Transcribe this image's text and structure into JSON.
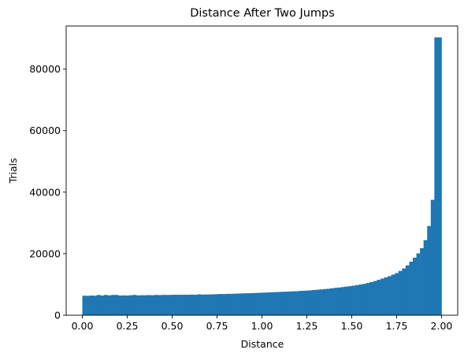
{
  "chart_data": {
    "type": "bar",
    "title": "Distance After Two Jumps",
    "xlabel": "Distance",
    "ylabel": "Trials",
    "xlim": [
      -0.09,
      2.09
    ],
    "ylim": [
      0,
      94000
    ],
    "bin_width": 0.02,
    "bar_color": "#1f77b4",
    "grid": false,
    "x_ticks": [
      {
        "value": 0.0,
        "label": "0.00"
      },
      {
        "value": 0.25,
        "label": "0.25"
      },
      {
        "value": 0.5,
        "label": "0.50"
      },
      {
        "value": 0.75,
        "label": "0.75"
      },
      {
        "value": 1.0,
        "label": "1.00"
      },
      {
        "value": 1.25,
        "label": "1.25"
      },
      {
        "value": 1.5,
        "label": "1.50"
      },
      {
        "value": 1.75,
        "label": "1.75"
      },
      {
        "value": 2.0,
        "label": "2.00"
      }
    ],
    "y_ticks": [
      {
        "value": 0,
        "label": "0"
      },
      {
        "value": 20000,
        "label": "20000"
      },
      {
        "value": 40000,
        "label": "40000"
      },
      {
        "value": 60000,
        "label": "60000"
      },
      {
        "value": 80000,
        "label": "80000"
      }
    ],
    "bin_starts": [
      0.0,
      0.02,
      0.04,
      0.06,
      0.08,
      0.1,
      0.12,
      0.14,
      0.16,
      0.18,
      0.2,
      0.22,
      0.24,
      0.26,
      0.28,
      0.3,
      0.32,
      0.34,
      0.36,
      0.38,
      0.4,
      0.42,
      0.44,
      0.46,
      0.48,
      0.5,
      0.52,
      0.54,
      0.56,
      0.58,
      0.6,
      0.62,
      0.64,
      0.66,
      0.68,
      0.7,
      0.72,
      0.74,
      0.76,
      0.78,
      0.8,
      0.82,
      0.84,
      0.86,
      0.88,
      0.9,
      0.92,
      0.94,
      0.96,
      0.98,
      1.0,
      1.02,
      1.04,
      1.06,
      1.08,
      1.1,
      1.12,
      1.14,
      1.16,
      1.18,
      1.2,
      1.22,
      1.24,
      1.26,
      1.28,
      1.3,
      1.32,
      1.34,
      1.36,
      1.38,
      1.4,
      1.42,
      1.44,
      1.46,
      1.48,
      1.5,
      1.52,
      1.54,
      1.56,
      1.58,
      1.6,
      1.62,
      1.64,
      1.66,
      1.68,
      1.7,
      1.72,
      1.74,
      1.76,
      1.78,
      1.8,
      1.82,
      1.84,
      1.86,
      1.88,
      1.9,
      1.92,
      1.94,
      1.96,
      1.98
    ],
    "values": [
      6350,
      6300,
      6400,
      6350,
      6600,
      6400,
      6600,
      6450,
      6600,
      6600,
      6400,
      6450,
      6400,
      6500,
      6600,
      6450,
      6500,
      6500,
      6550,
      6500,
      6600,
      6550,
      6600,
      6600,
      6600,
      6650,
      6650,
      6650,
      6650,
      6650,
      6700,
      6650,
      6800,
      6700,
      6750,
      6750,
      6800,
      6850,
      6900,
      6900,
      6950,
      6950,
      7000,
      7050,
      7100,
      7150,
      7150,
      7200,
      7250,
      7300,
      7350,
      7400,
      7450,
      7500,
      7550,
      7600,
      7650,
      7700,
      7750,
      7800,
      7900,
      7950,
      8000,
      8100,
      8200,
      8300,
      8400,
      8500,
      8600,
      8750,
      8900,
      9000,
      9150,
      9300,
      9450,
      9600,
      9800,
      10000,
      10200,
      10500,
      10800,
      11100,
      11500,
      11900,
      12300,
      12700,
      13200,
      13700,
      14400,
      15200,
      16200,
      17400,
      18700,
      20100,
      21800,
      24400,
      29000,
      37500,
      90300,
      90300
    ]
  }
}
